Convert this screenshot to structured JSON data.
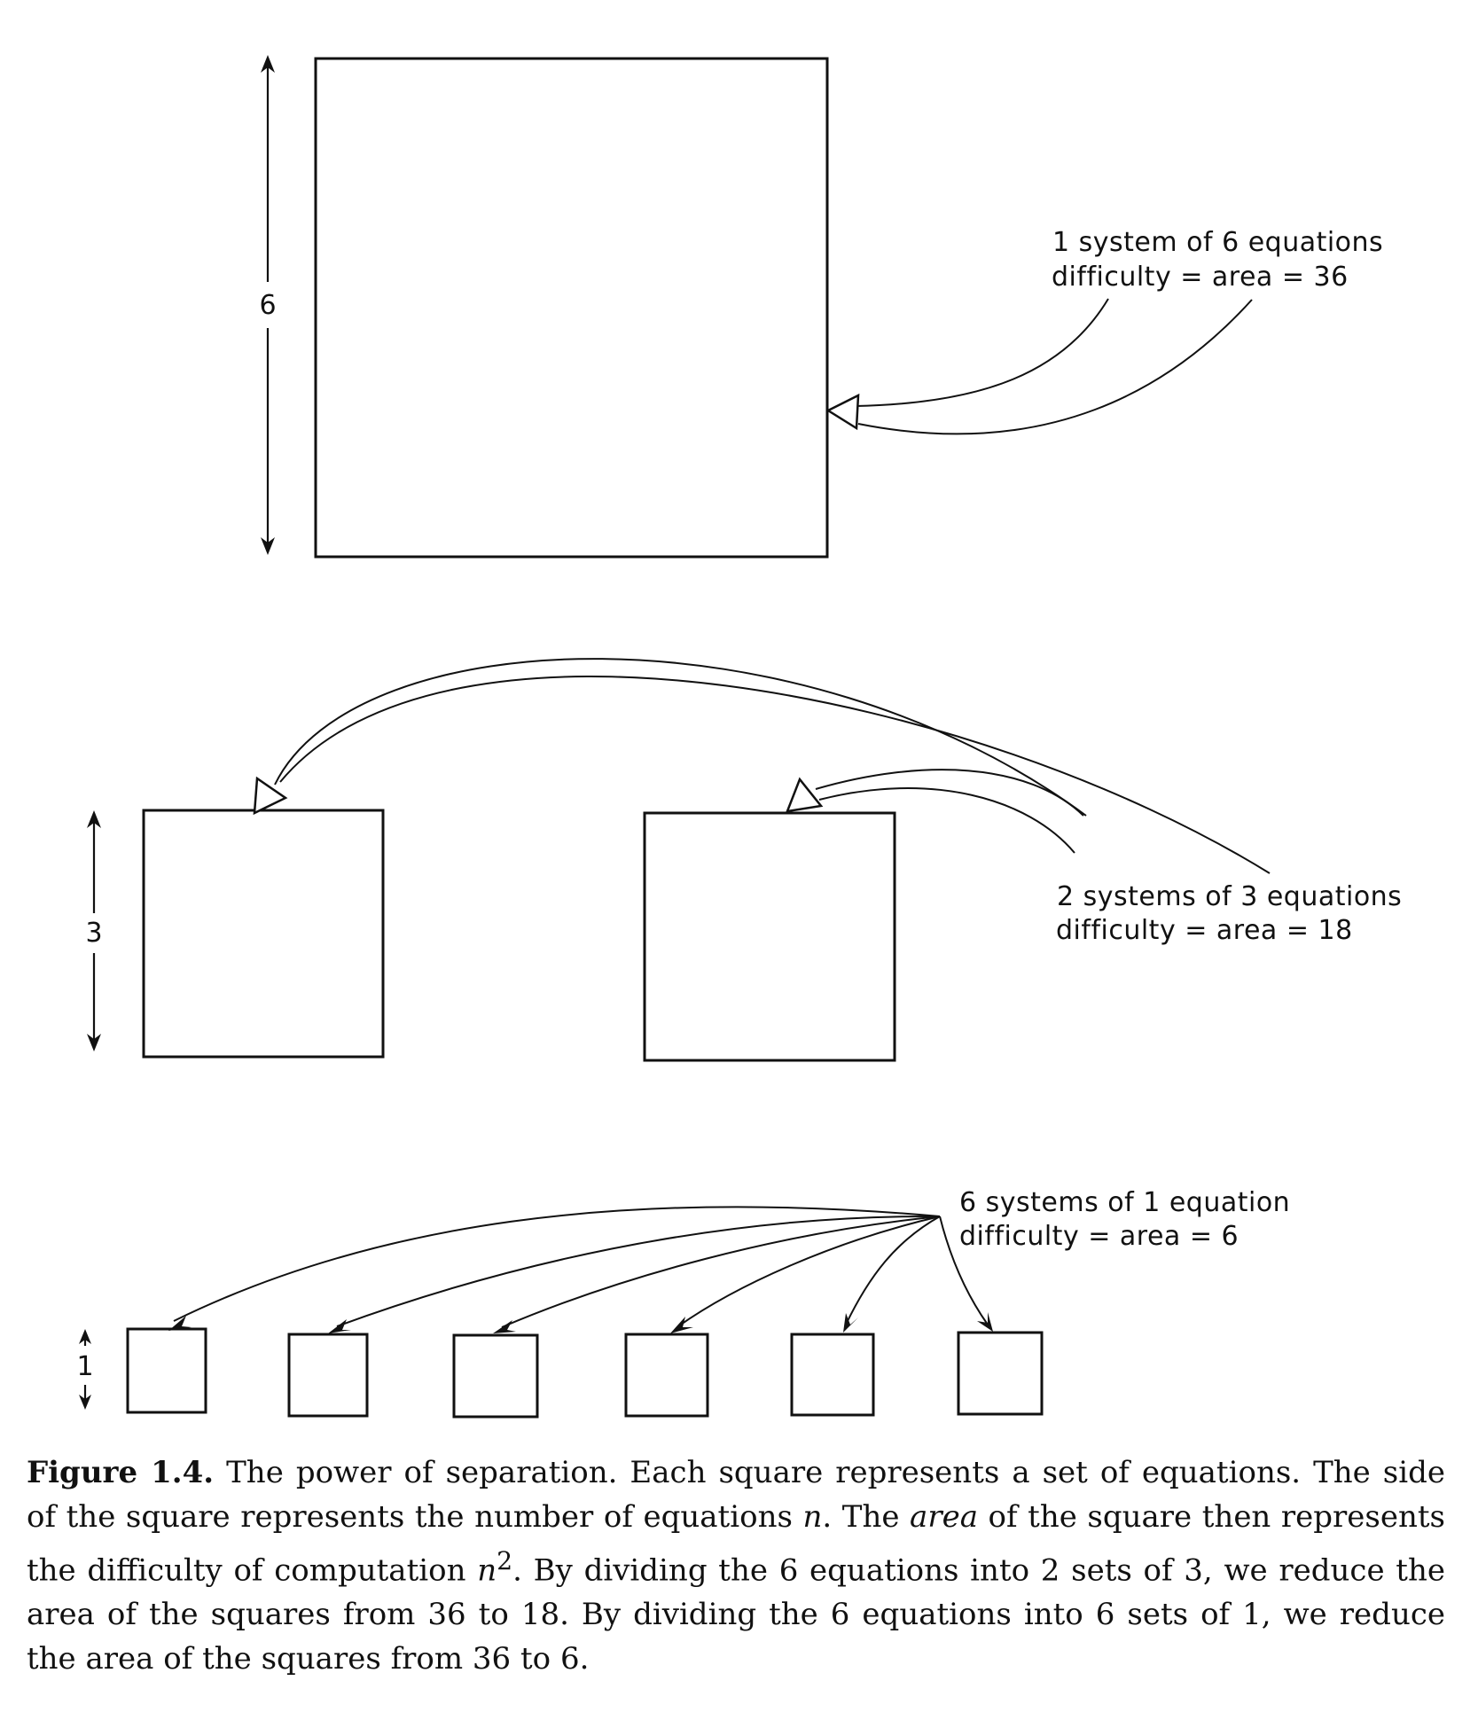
{
  "labels": {
    "big_side": "6",
    "big_line1": "1 system of 6 equations",
    "big_line2": "difficulty = area = 36",
    "mid_side": "3",
    "mid_line1": "2 systems of 3 equations",
    "mid_line2": "difficulty = area = 18",
    "small_side": "1",
    "small_line1": "6 systems of 1 equation",
    "small_line2": "difficulty = area = 6"
  },
  "caption": {
    "figure_label": "Figure 1.4.",
    "p1": "The power of separation. Each square represents a set of equations. The side of the square represents the number of equations ",
    "n": "n",
    "p2": ". The ",
    "area_word": "area",
    "p3": " of the square then represents the difficulty of computation ",
    "n2_base": "n",
    "n2_exp": "2",
    "p4": ". By dividing the 6 equations into 2 sets of 3, we reduce the area of the squares from 36 to 18. By dividing the 6 equations into 6 sets of 1, we reduce the area of the squares from 36 to 6."
  }
}
